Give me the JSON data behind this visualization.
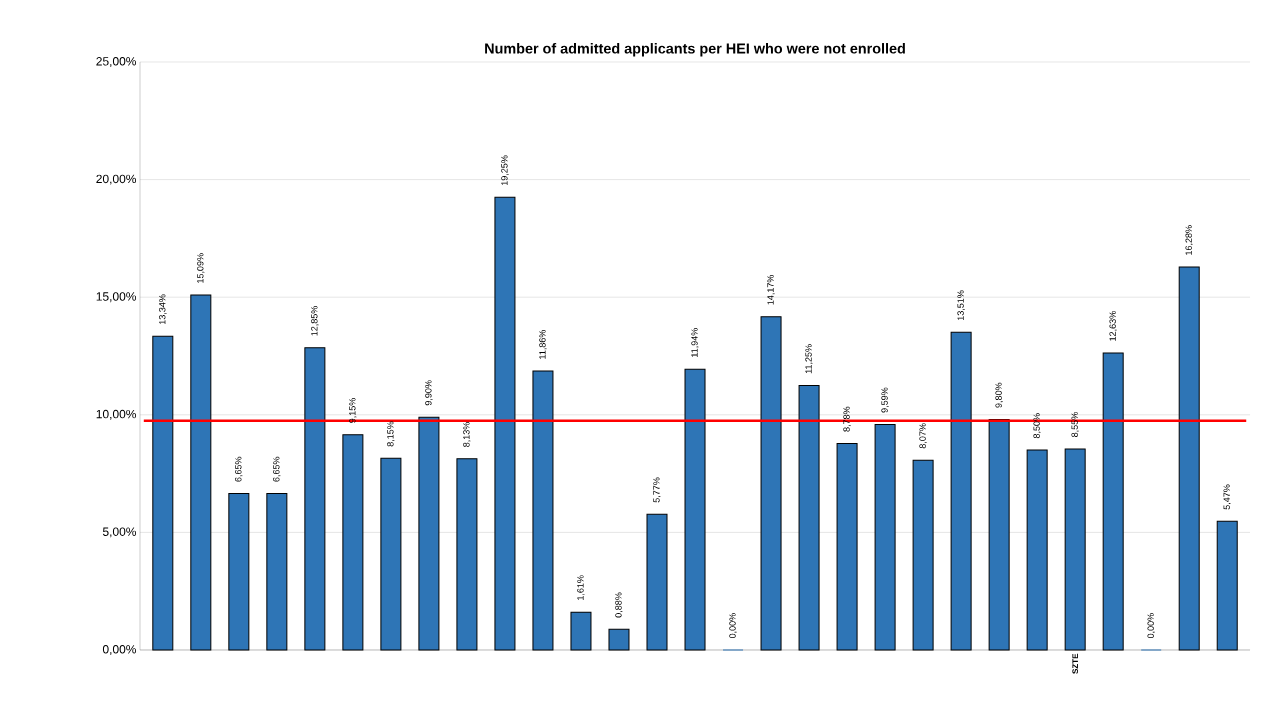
{
  "chart_data": {
    "type": "bar",
    "title": "Number of admitted applicants per HEI who were not enrolled",
    "categories": [
      null,
      null,
      null,
      null,
      null,
      null,
      null,
      null,
      null,
      null,
      null,
      null,
      null,
      null,
      null,
      null,
      null,
      null,
      null,
      null,
      null,
      null,
      null,
      null,
      "SZTE",
      null,
      null,
      null,
      null
    ],
    "values": [
      13.34,
      15.09,
      6.65,
      6.65,
      12.85,
      9.15,
      8.15,
      9.9,
      8.13,
      19.25,
      11.86,
      1.61,
      0.88,
      5.77,
      11.94,
      0.0,
      14.17,
      11.25,
      8.78,
      9.59,
      8.07,
      13.51,
      9.8,
      8.5,
      8.55,
      12.63,
      0.0,
      16.28,
      5.47
    ],
    "value_labels": [
      "13,34%",
      "15,09%",
      "6,65%",
      "6,65%",
      "12,85%",
      "9,15%",
      "8,15%",
      "9,90%",
      "8,13%",
      "19,25%",
      "11,86%",
      "1,61%",
      "0,88%",
      "5,77%",
      "11,94%",
      "0,00%",
      "14,17%",
      "11,25%",
      "8,78%",
      "9,59%",
      "8,07%",
      "13,51%",
      "9,80%",
      "8,50%",
      "8,55%",
      "12,63%",
      "0,00%",
      "16,28%",
      "5,47%"
    ],
    "color": "#2e75b6",
    "ylim": [
      0,
      25
    ],
    "yticks": [
      {
        "value": 0,
        "label": "0,00%"
      },
      {
        "value": 5,
        "label": "5,00%"
      },
      {
        "value": 10,
        "label": "10,00%"
      },
      {
        "value": 15,
        "label": "15,00%"
      },
      {
        "value": 20,
        "label": "20,00%"
      },
      {
        "value": 25,
        "label": "25,00%"
      }
    ],
    "grid": "y",
    "ref_lines": [
      {
        "axis": "y",
        "value": 9.75,
        "color": "#ff0000"
      }
    ]
  }
}
